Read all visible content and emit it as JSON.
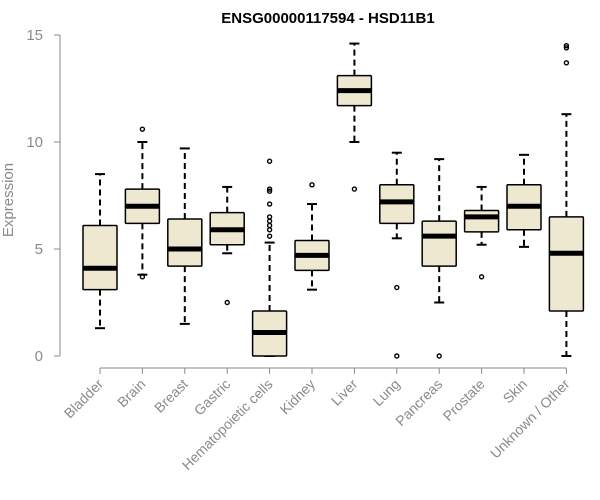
{
  "chart_data": {
    "type": "boxplot",
    "title": "ENSG00000117594 - HSD11B1",
    "xlabel": "",
    "ylabel": "Expression",
    "ylim": [
      0,
      15
    ],
    "yticks": [
      0,
      5,
      10,
      15
    ],
    "grid": false,
    "box_fill": "#efe8d0",
    "box_stroke": "#000000",
    "axis_color": "#8a8a8a",
    "series": [
      {
        "name": "Bladder",
        "whisker_low": 1.3,
        "q1": 3.1,
        "median": 4.1,
        "q3": 6.1,
        "whisker_high": 8.5,
        "outliers": []
      },
      {
        "name": "Brain",
        "whisker_low": 3.8,
        "q1": 6.2,
        "median": 7.0,
        "q3": 7.8,
        "whisker_high": 10.0,
        "outliers": [
          3.7,
          10.6
        ]
      },
      {
        "name": "Breast",
        "whisker_low": 1.5,
        "q1": 4.2,
        "median": 5.0,
        "q3": 6.4,
        "whisker_high": 9.7,
        "outliers": []
      },
      {
        "name": "Gastric",
        "whisker_low": 4.8,
        "q1": 5.2,
        "median": 5.9,
        "q3": 6.7,
        "whisker_high": 7.9,
        "outliers": [
          2.5
        ]
      },
      {
        "name": "Hematopoietic cells",
        "whisker_low": 0.0,
        "q1": 0.0,
        "median": 1.1,
        "q3": 2.1,
        "whisker_high": 5.3,
        "outliers": [
          5.6,
          5.9,
          6.1,
          6.3,
          6.5,
          7.1,
          7.7,
          7.8,
          9.1
        ]
      },
      {
        "name": "Kidney",
        "whisker_low": 3.1,
        "q1": 4.0,
        "median": 4.7,
        "q3": 5.4,
        "whisker_high": 7.1,
        "outliers": [
          8.0
        ]
      },
      {
        "name": "Liver",
        "whisker_low": 10.0,
        "q1": 11.7,
        "median": 12.4,
        "q3": 13.1,
        "whisker_high": 14.6,
        "outliers": [
          7.8
        ]
      },
      {
        "name": "Lung",
        "whisker_low": 5.5,
        "q1": 6.2,
        "median": 7.2,
        "q3": 8.0,
        "whisker_high": 9.5,
        "outliers": [
          3.2,
          0.0
        ]
      },
      {
        "name": "Pancreas",
        "whisker_low": 2.5,
        "q1": 4.2,
        "median": 5.6,
        "q3": 6.3,
        "whisker_high": 9.2,
        "outliers": [
          0.0
        ]
      },
      {
        "name": "Prostate",
        "whisker_low": 5.2,
        "q1": 5.8,
        "median": 6.5,
        "q3": 6.8,
        "whisker_high": 7.9,
        "outliers": [
          3.7
        ]
      },
      {
        "name": "Skin",
        "whisker_low": 5.1,
        "q1": 5.9,
        "median": 7.0,
        "q3": 8.0,
        "whisker_high": 9.4,
        "outliers": []
      },
      {
        "name": "Unknown / Other",
        "whisker_low": 0.0,
        "q1": 2.1,
        "median": 4.8,
        "q3": 6.5,
        "whisker_high": 11.3,
        "outliers": [
          13.7,
          14.4,
          14.5
        ]
      }
    ]
  }
}
